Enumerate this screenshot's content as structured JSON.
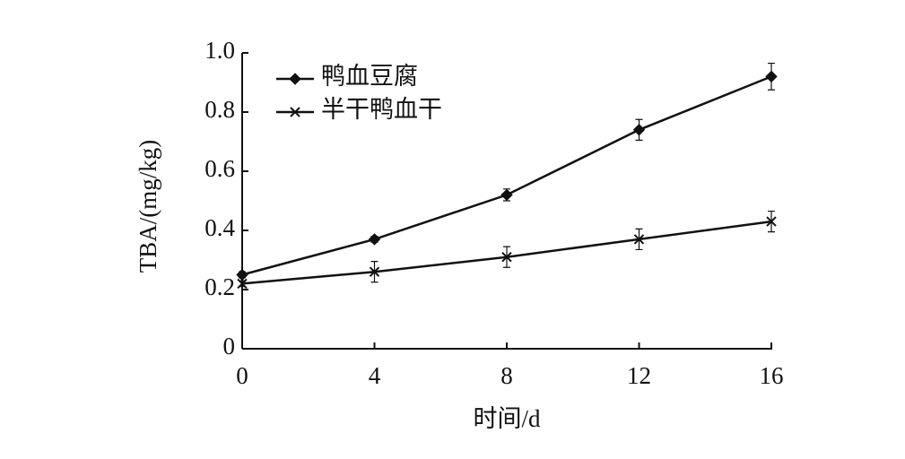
{
  "chart_data": {
    "type": "line",
    "x_label": "时间/d",
    "y_label": "TBA/(mg/kg)",
    "x": [
      0,
      4,
      8,
      12,
      16
    ],
    "xlim": [
      0,
      16
    ],
    "xticks": [
      0,
      4,
      8,
      12,
      16
    ],
    "ylim": [
      0,
      1
    ],
    "yticks": [
      0,
      0.2,
      0.4,
      0.6,
      0.8,
      {
        "value": 1,
        "label": "1.0"
      }
    ],
    "legend": "top-left",
    "series": [
      {
        "name": "鸭血豆腐",
        "color": "#111111",
        "marker": "diamond",
        "values": [
          0.25,
          0.37,
          0.52,
          0.74,
          0.92
        ],
        "errors": [
          0.01,
          0.01,
          0.02,
          0.035,
          0.045
        ]
      },
      {
        "name": "半干鸭血干",
        "color": "#111111",
        "marker": "x",
        "values": [
          0.22,
          0.26,
          0.31,
          0.37,
          0.43
        ],
        "errors": [
          0.01,
          0.035,
          0.035,
          0.035,
          0.035
        ]
      }
    ]
  }
}
